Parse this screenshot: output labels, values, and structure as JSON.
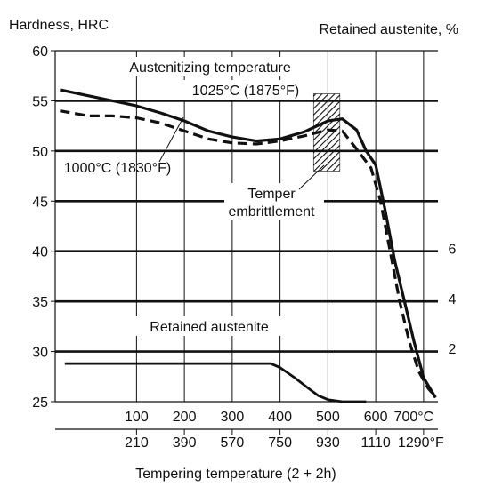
{
  "chart_data": {
    "type": "line",
    "title": "",
    "ylabel": "Hardness, HRC",
    "y2label": "Retained austenite, %",
    "xlabel": "Tempering temperature  (2 + 2h)",
    "xlim": [
      -70,
      730
    ],
    "ylim": [
      25,
      60
    ],
    "x_ticks_c": [
      100,
      200,
      300,
      400,
      500,
      600,
      700
    ],
    "x_tick_labels_c": [
      "100",
      "200",
      "300",
      "400",
      "500",
      "600",
      "700°C"
    ],
    "x_tick_labels_f": [
      "210",
      "390",
      "570",
      "750",
      "930",
      "1110",
      "1290°F"
    ],
    "y_ticks": [
      25,
      30,
      35,
      40,
      45,
      50,
      55,
      60
    ],
    "y_tick_labels": [
      "25",
      "30",
      "35",
      "40",
      "45",
      "50",
      "55",
      "60"
    ],
    "y2_ticks": [
      {
        "hrc": 30.3,
        "label": "2"
      },
      {
        "hrc": 35.3,
        "label": "4"
      },
      {
        "hrc": 40.3,
        "label": "6"
      }
    ],
    "grid_y": true,
    "series": [
      {
        "name": "1025°C (1875°F)",
        "style": "solid",
        "color": "#111111",
        "x": [
          -60,
          0,
          50,
          100,
          150,
          200,
          250,
          300,
          350,
          400,
          450,
          500,
          530,
          560,
          580,
          600,
          620,
          640,
          660,
          680,
          700,
          725
        ],
        "y": [
          56.1,
          55.5,
          55.0,
          54.5,
          53.8,
          53.0,
          52.0,
          51.4,
          51.0,
          51.2,
          51.9,
          53.0,
          53.2,
          52.1,
          50.0,
          48.6,
          44.0,
          39.0,
          35.0,
          31.0,
          27.4,
          25.4
        ]
      },
      {
        "name": "1000°C (1830°F)",
        "style": "dashed",
        "color": "#111111",
        "x": [
          -60,
          0,
          50,
          100,
          150,
          200,
          250,
          300,
          350,
          400,
          450,
          500,
          530,
          560,
          590,
          610,
          630,
          650,
          670,
          690,
          710,
          725
        ],
        "y": [
          54.0,
          53.5,
          53.5,
          53.3,
          52.8,
          52.0,
          51.2,
          50.8,
          50.7,
          51.0,
          51.5,
          52.1,
          52.0,
          50.2,
          48.3,
          45.0,
          40.0,
          35.0,
          31.0,
          28.0,
          26.3,
          25.5
        ]
      },
      {
        "name": "Retained austenite",
        "style": "solid",
        "color": "#111111",
        "x": [
          -50,
          0,
          100,
          200,
          300,
          380,
          400,
          430,
          460,
          480,
          500,
          530,
          580
        ],
        "y": [
          28.8,
          28.8,
          28.8,
          28.8,
          28.8,
          28.8,
          28.4,
          27.4,
          26.3,
          25.6,
          25.2,
          25.0,
          25.0
        ]
      }
    ],
    "annotations": {
      "austenitizing_title": "Austenitizing temperature",
      "label_1025": "1025°C (1875°F)",
      "label_1000": "1000°C (1830°F)",
      "temper_line1": "Temper",
      "temper_line2": "embrittlement",
      "retained_label": "Retained austenite",
      "embrittlement_range_c": [
        470,
        525
      ],
      "embrittlement_range_hrc": [
        48.0,
        55.7
      ]
    }
  }
}
